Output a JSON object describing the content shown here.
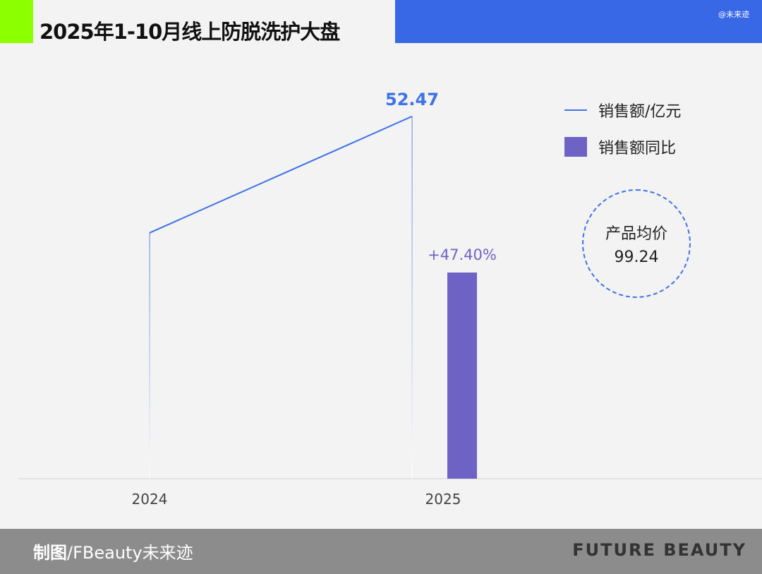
{
  "header": {
    "title": "2025年1-10月线上防脱洗护大盘",
    "watermark": "@未来迹"
  },
  "legend": {
    "line": "销售额/亿元",
    "bar": "销售额同比"
  },
  "badge": {
    "label": "产品均价",
    "value": "99.24"
  },
  "footer": {
    "credit_bold": "制图",
    "credit_rest": "/FBeauty未来迹",
    "brand": "FUTURE BEAUTY"
  },
  "colors": {
    "line": "#3e72e8",
    "bar": "#6e63c4",
    "accent_green": "#8cff00",
    "header_blue": "#3868e6"
  },
  "chart_data": {
    "type": "bar+line",
    "categories": [
      "2024",
      "2025"
    ],
    "series": [
      {
        "name": "销售额/亿元",
        "type": "line",
        "values": [
          35.6,
          52.47
        ],
        "labels": [
          "",
          "52.47"
        ]
      },
      {
        "name": "销售额同比",
        "type": "bar",
        "values": [
          null,
          47.4
        ],
        "labels": [
          "",
          "+47.40%"
        ]
      }
    ],
    "legend_position": "top-right",
    "grid": false
  }
}
